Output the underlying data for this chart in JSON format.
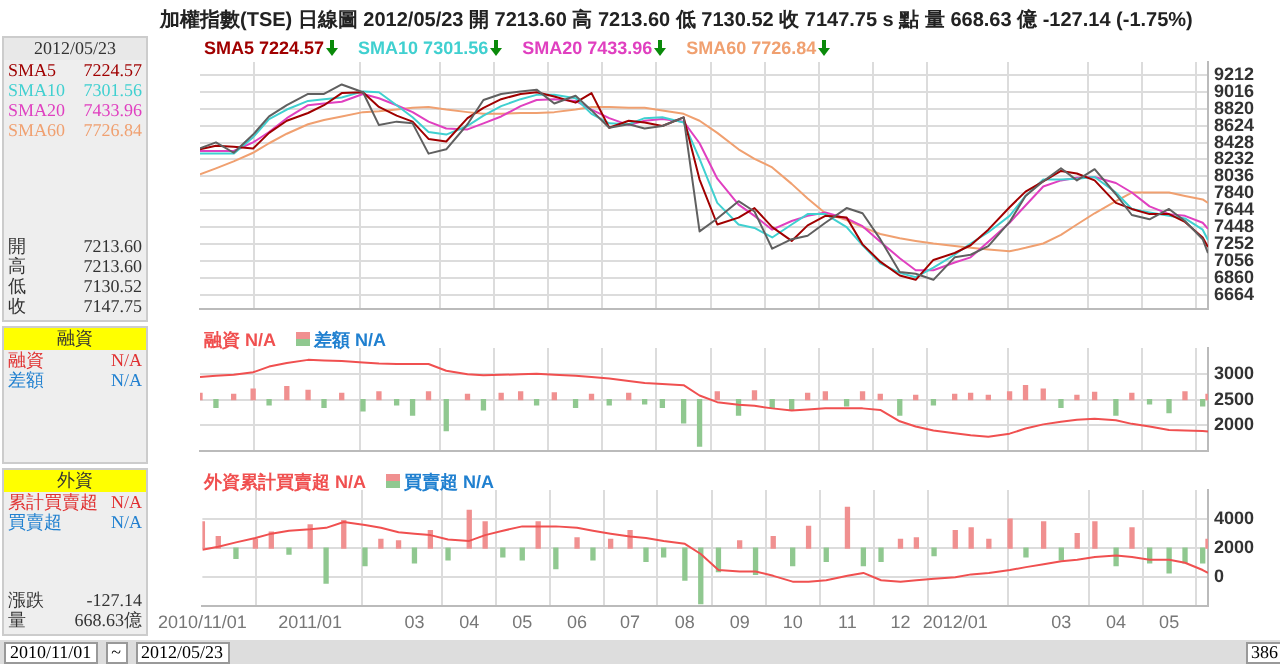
{
  "chart_data": [
    {
      "type": "line",
      "title": "加權指數(TSE) 日線圖 2012/05/23 開 7213.60 高 7213.60 低 7130.52 收 7147.75 s 點 量 668.63 億 -127.14 (-1.75%)",
      "annotations": [
        "2012/05/23",
        "SMA5 7224.57",
        "SMA10 7301.56",
        "SMA20 7433.96",
        "SMA60 7726.84",
        "開 7213.60",
        "高 7213.60",
        "低 7130.52",
        "收 7147.75"
      ],
      "x": [
        "2010-11-01",
        "2010-11-10",
        "2010-11-20",
        "2010-12-01",
        "2010-12-10",
        "2010-12-20",
        "2011-01-01",
        "2011-01-10",
        "2011-01-20",
        "2011-02-01",
        "2011-02-10",
        "2011-02-20",
        "2011-03-01",
        "2011-03-10",
        "2011-03-20",
        "2011-04-01",
        "2011-04-10",
        "2011-04-20",
        "2011-05-01",
        "2011-05-10",
        "2011-05-20",
        "2011-06-01",
        "2011-06-10",
        "2011-06-20",
        "2011-07-01",
        "2011-07-10",
        "2011-07-20",
        "2011-08-01",
        "2011-08-10",
        "2011-08-20",
        "2011-09-01",
        "2011-09-10",
        "2011-09-20",
        "2011-10-01",
        "2011-10-10",
        "2011-10-20",
        "2011-11-01",
        "2011-11-10",
        "2011-11-20",
        "2011-12-01",
        "2011-12-10",
        "2011-12-20",
        "2012-01-01",
        "2012-01-10",
        "2012-01-20",
        "2012-02-01",
        "2012-02-10",
        "2012-02-20",
        "2012-03-01",
        "2012-03-10",
        "2012-03-20",
        "2012-04-01",
        "2012-04-10",
        "2012-04-20",
        "2012-05-01",
        "2012-05-10",
        "2012-05-20",
        "2012-05-23"
      ],
      "xlim": [
        "2010-11-01",
        "2012-05-23"
      ],
      "xticks": [
        {
          "value": "2010-11-01",
          "label": null
        },
        {
          "value": "2011-01-01",
          "label": null
        },
        {
          "value": "2011-03-01",
          "label": null
        },
        {
          "value": "2011-04-01",
          "label": null
        },
        {
          "value": "2011-05-01",
          "label": null
        },
        {
          "value": "2011-06-01",
          "label": null
        },
        {
          "value": "2011-07-01",
          "label": null
        },
        {
          "value": "2011-08-01",
          "label": null
        },
        {
          "value": "2011-09-01",
          "label": null
        },
        {
          "value": "2011-10-01",
          "label": null
        },
        {
          "value": "2011-11-01",
          "label": null
        },
        {
          "value": "2011-12-01",
          "label": null
        },
        {
          "value": "2012-01-01",
          "label": null
        },
        {
          "value": "2012-03-01",
          "label": null
        },
        {
          "value": "2012-04-01",
          "label": null
        },
        {
          "value": "2012-05-01",
          "label": null
        }
      ],
      "ylim": [
        6500,
        9360
      ],
      "yticks": [
        6664,
        6860,
        7056,
        7252,
        7448,
        7644,
        7840,
        8036,
        8232,
        8428,
        8624,
        8820,
        9016,
        9212
      ],
      "grid": true,
      "legend": "top left",
      "tick_labels": "y",
      "series": [
        {
          "color": "#606060",
          "values": [
            8360,
            8430,
            8310,
            8520,
            8730,
            8860,
            8990,
            8990,
            9100,
            9010,
            8630,
            8670,
            8650,
            8300,
            8350,
            8640,
            8920,
            8990,
            9020,
            9040,
            8880,
            8970,
            8800,
            8600,
            8640,
            8590,
            8620,
            8720,
            7400,
            7550,
            7750,
            7630,
            7200,
            7310,
            7350,
            7500,
            7670,
            7610,
            7310,
            6930,
            6910,
            6840,
            7100,
            7130,
            7230,
            7510,
            7810,
            7980,
            8130,
            7990,
            8120,
            7830,
            7590,
            7540,
            7660,
            7520,
            7310,
            7150
          ]
        },
        {
          "name": "SMA5 7224.57",
          "color": "#a00000",
          "values": [
            8350,
            8390,
            8380,
            8360,
            8540,
            8680,
            8770,
            8860,
            9000,
            9010,
            8840,
            8740,
            8670,
            8470,
            8440,
            8710,
            8830,
            8930,
            8990,
            9010,
            8960,
            8890,
            9000,
            8600,
            8680,
            8660,
            8620,
            8720,
            8000,
            7480,
            7560,
            7670,
            7450,
            7290,
            7470,
            7580,
            7560,
            7250,
            7050,
            6890,
            6840,
            7070,
            7150,
            7240,
            7420,
            7680,
            7860,
            7980,
            8100,
            8070,
            7990,
            7730,
            7660,
            7600,
            7600,
            7510,
            7330,
            7220
          ]
        },
        {
          "name": "SMA10 7301.56",
          "color": "#40d0d0",
          "values": [
            8300,
            8300,
            8300,
            8490,
            8700,
            8810,
            8910,
            8930,
            8950,
            9020,
            9010,
            8860,
            8720,
            8550,
            8520,
            8620,
            8740,
            8850,
            8930,
            8980,
            8980,
            8940,
            8760,
            8650,
            8640,
            8710,
            8720,
            8660,
            8240,
            7730,
            7480,
            7440,
            7330,
            7480,
            7600,
            7600,
            7450,
            7240,
            7030,
            6920,
            6870,
            6980,
            7130,
            7260,
            7390,
            7580,
            7810,
            8000,
            8000,
            8010,
            8030,
            7850,
            7660,
            7620,
            7580,
            7550,
            7420,
            7300
          ]
        },
        {
          "name": "SMA20 7433.96",
          "color": "#e040c0",
          "values": [
            8330,
            8330,
            8330,
            8430,
            8550,
            8710,
            8860,
            8880,
            8900,
            8990,
            8940,
            8860,
            8780,
            8670,
            8590,
            8580,
            8650,
            8730,
            8850,
            8920,
            8930,
            8910,
            8810,
            8710,
            8630,
            8680,
            8700,
            8670,
            8420,
            8010,
            7710,
            7580,
            7420,
            7520,
            7580,
            7620,
            7550,
            7460,
            7280,
            7090,
            6950,
            6950,
            7040,
            7100,
            7280,
            7500,
            7700,
            7920,
            7990,
            8020,
            8030,
            7960,
            7850,
            7690,
            7600,
            7580,
            7500,
            7430
          ]
        },
        {
          "name": "SMA60 7726.84",
          "color": "#f0a070",
          "values": [
            8060,
            8130,
            8210,
            8310,
            8420,
            8530,
            8640,
            8690,
            8730,
            8780,
            8790,
            8810,
            8830,
            8840,
            8810,
            8780,
            8760,
            8760,
            8770,
            8770,
            8780,
            8810,
            8840,
            8840,
            8830,
            8830,
            8800,
            8760,
            8680,
            8540,
            8350,
            8240,
            8140,
            7950,
            7780,
            7610,
            7530,
            7450,
            7370,
            7320,
            7290,
            7260,
            7230,
            7210,
            7190,
            7170,
            7210,
            7260,
            7360,
            7480,
            7610,
            7750,
            7850,
            7850,
            7850,
            7810,
            7770,
            7730
          ]
        }
      ]
    },
    {
      "type": "bar",
      "annotations": [
        "融資",
        "融資 N/A",
        "差額 N/A"
      ],
      "x": [
        "2010-11-01",
        "2010-11-10",
        "2010-11-20",
        "2010-12-01",
        "2010-12-10",
        "2010-12-20",
        "2011-01-01",
        "2011-01-10",
        "2011-01-20",
        "2011-02-01",
        "2011-02-10",
        "2011-02-20",
        "2011-03-01",
        "2011-03-10",
        "2011-03-20",
        "2011-04-01",
        "2011-04-10",
        "2011-04-20",
        "2011-05-01",
        "2011-05-10",
        "2011-05-20",
        "2011-06-01",
        "2011-06-10",
        "2011-06-20",
        "2011-07-01",
        "2011-07-10",
        "2011-07-20",
        "2011-08-01",
        "2011-08-10",
        "2011-08-20",
        "2011-09-01",
        "2011-09-10",
        "2011-09-20",
        "2011-10-01",
        "2011-10-10",
        "2011-10-20",
        "2011-11-01",
        "2011-11-10",
        "2011-11-20",
        "2011-12-01",
        "2011-12-10",
        "2011-12-20",
        "2012-01-01",
        "2012-01-10",
        "2012-01-20",
        "2012-02-01",
        "2012-02-10",
        "2012-02-20",
        "2012-03-01",
        "2012-03-10",
        "2012-03-20",
        "2012-04-01",
        "2012-04-10",
        "2012-04-20",
        "2012-05-01",
        "2012-05-10",
        "2012-05-20",
        "2012-05-23"
      ],
      "xlim": [
        "2010-11-01",
        "2012-05-23"
      ],
      "xticks": [
        {
          "value": "2010-11-01",
          "label": null
        },
        {
          "value": "2011-01-01",
          "label": null
        },
        {
          "value": "2011-03-01",
          "label": null
        },
        {
          "value": "2011-04-01",
          "label": null
        },
        {
          "value": "2011-05-01",
          "label": null
        },
        {
          "value": "2011-06-01",
          "label": null
        },
        {
          "value": "2011-07-01",
          "label": null
        },
        {
          "value": "2011-08-01",
          "label": null
        },
        {
          "value": "2011-09-01",
          "label": null
        },
        {
          "value": "2011-10-01",
          "label": null
        },
        {
          "value": "2011-11-01",
          "label": null
        },
        {
          "value": "2011-12-01",
          "label": null
        },
        {
          "value": "2012-01-01",
          "label": null
        },
        {
          "value": "2012-03-01",
          "label": null
        },
        {
          "value": "2012-04-01",
          "label": null
        },
        {
          "value": "2012-05-01",
          "label": null
        }
      ],
      "ylim": [
        1500,
        3500
      ],
      "yticks": [
        2000,
        2500,
        3000
      ],
      "grid": true,
      "legend": "top left",
      "tick_labels": "y",
      "series": [
        {
          "name": "融資 N/A",
          "type": "line",
          "color": "#f05050",
          "values": [
            2940,
            2960,
            2980,
            3030,
            3140,
            3210,
            3270,
            3260,
            3250,
            3220,
            3200,
            3190,
            3190,
            3190,
            3060,
            2990,
            2970,
            2980,
            2990,
            3000,
            2980,
            2960,
            2940,
            2910,
            2860,
            2820,
            2800,
            2780,
            2580,
            2450,
            2400,
            2380,
            2330,
            2290,
            2310,
            2330,
            2330,
            2330,
            2300,
            2080,
            1980,
            1900,
            1850,
            1810,
            1780,
            1840,
            1940,
            2020,
            2070,
            2110,
            2130,
            2100,
            2030,
            1980,
            1910,
            1900,
            1890,
            1880
          ]
        },
        {
          "name": "差額 N/A",
          "color": "#2080d0",
          "base": [
            2500,
            2500,
            2500,
            2500,
            2500,
            2500,
            2500,
            2500,
            2500,
            2500,
            2500,
            2500,
            2500,
            2500,
            2500,
            2500,
            2500,
            2500,
            2500,
            2500,
            2500,
            2500,
            2500,
            2500,
            2500,
            2500,
            2500,
            2500,
            2500,
            2500,
            2500,
            2500,
            2500,
            2500,
            2500,
            2500,
            2500,
            2500,
            2500,
            2500,
            2500,
            2500,
            2500,
            2500,
            2500,
            2500,
            2500,
            2500,
            2500,
            2500,
            2500,
            2500,
            2500,
            2500,
            2500,
            2500,
            2500,
            2500
          ],
          "values": [
            120,
            -150,
            100,
            200,
            -100,
            250,
            180,
            -150,
            120,
            -220,
            150,
            -100,
            -300,
            150,
            -600,
            100,
            -200,
            120,
            150,
            -100,
            130,
            -150,
            100,
            -100,
            120,
            -80,
            -150,
            -450,
            -900,
            150,
            -300,
            170,
            -150,
            -200,
            120,
            150,
            -120,
            150,
            100,
            -300,
            80,
            -100,
            100,
            120,
            80,
            150,
            270,
            200,
            -150,
            80,
            140,
            -300,
            120,
            -80,
            -250,
            150,
            -120,
            100
          ],
          "colors": [
            "#f09090",
            "#90c890",
            "#f09090",
            "#f09090",
            "#90c890",
            "#f09090",
            "#f09090",
            "#90c890",
            "#f09090",
            "#90c890",
            "#f09090",
            "#90c890",
            "#90c890",
            "#f09090",
            "#90c890",
            "#f09090",
            "#90c890",
            "#f09090",
            "#f09090",
            "#90c890",
            "#f09090",
            "#90c890",
            "#f09090",
            "#90c890",
            "#f09090",
            "#90c890",
            "#90c890",
            "#90c890",
            "#90c890",
            "#f09090",
            "#90c890",
            "#f09090",
            "#90c890",
            "#90c890",
            "#f09090",
            "#f09090",
            "#90c890",
            "#f09090",
            "#f09090",
            "#90c890",
            "#f09090",
            "#90c890",
            "#f09090",
            "#f09090",
            "#f09090",
            "#f09090",
            "#f09090",
            "#f09090",
            "#90c890",
            "#f09090",
            "#f09090",
            "#90c890",
            "#f09090",
            "#90c890",
            "#90c890",
            "#f09090",
            "#90c890",
            "#f09090"
          ]
        }
      ]
    },
    {
      "type": "bar",
      "annotations": [
        "外資",
        "累計買賣超 N/A",
        "買賣超 N/A",
        "漲跌 -127.14",
        "量 668.63億",
        "2010/11/01",
        "~",
        "2012/05/23",
        "386"
      ],
      "x": [
        "2010-11-01",
        "2010-11-10",
        "2010-11-20",
        "2010-12-01",
        "2010-12-10",
        "2010-12-20",
        "2011-01-01",
        "2011-01-10",
        "2011-01-20",
        "2011-02-01",
        "2011-02-10",
        "2011-02-20",
        "2011-03-01",
        "2011-03-10",
        "2011-03-20",
        "2011-04-01",
        "2011-04-10",
        "2011-04-20",
        "2011-05-01",
        "2011-05-10",
        "2011-05-20",
        "2011-06-01",
        "2011-06-10",
        "2011-06-20",
        "2011-07-01",
        "2011-07-10",
        "2011-07-20",
        "2011-08-01",
        "2011-08-10",
        "2011-08-20",
        "2011-09-01",
        "2011-09-10",
        "2011-09-20",
        "2011-10-01",
        "2011-10-10",
        "2011-10-20",
        "2011-11-01",
        "2011-11-10",
        "2011-11-20",
        "2011-12-01",
        "2011-12-10",
        "2011-12-20",
        "2012-01-01",
        "2012-01-10",
        "2012-01-20",
        "2012-02-01",
        "2012-02-10",
        "2012-02-20",
        "2012-03-01",
        "2012-03-10",
        "2012-03-20",
        "2012-04-01",
        "2012-04-10",
        "2012-04-20",
        "2012-05-01",
        "2012-05-10",
        "2012-05-20",
        "2012-05-23"
      ],
      "xlim": [
        "2010-11-01",
        "2012-05-23"
      ],
      "xticks": [
        {
          "value": "2010-11-01",
          "label": "2010/11/01"
        },
        {
          "value": "2011-01-01",
          "label": "2011/01"
        },
        {
          "value": "2011-03-01",
          "label": "03"
        },
        {
          "value": "2011-04-01",
          "label": "04"
        },
        {
          "value": "2011-05-01",
          "label": "05"
        },
        {
          "value": "2011-06-01",
          "label": "06"
        },
        {
          "value": "2011-07-01",
          "label": "07"
        },
        {
          "value": "2011-08-01",
          "label": "08"
        },
        {
          "value": "2011-09-01",
          "label": "09"
        },
        {
          "value": "2011-10-01",
          "label": "10"
        },
        {
          "value": "2011-11-01",
          "label": "11"
        },
        {
          "value": "2011-12-01",
          "label": "12"
        },
        {
          "value": "2012-01-01",
          "label": "2012/01"
        },
        {
          "value": "2012-03-01",
          "label": "03"
        },
        {
          "value": "2012-04-01",
          "label": "04"
        },
        {
          "value": "2012-05-01",
          "label": "05"
        }
      ],
      "ylim": [
        -2000,
        6000
      ],
      "yticks": [
        0,
        2000,
        4000
      ],
      "grid": true,
      "legend": "top left",
      "series": [
        {
          "name": "外資累計買賣超 N/A",
          "type": "line",
          "color": "#f05050",
          "values": [
            1900,
            2100,
            2400,
            2700,
            3000,
            3200,
            3300,
            3400,
            3800,
            3600,
            3400,
            3100,
            3000,
            2900,
            2600,
            2500,
            2900,
            3200,
            3500,
            3500,
            3500,
            3400,
            3200,
            3000,
            2800,
            2700,
            2500,
            2300,
            1600,
            500,
            400,
            400,
            100,
            -300,
            -300,
            -200,
            100,
            300,
            -200,
            -300,
            -200,
            -100,
            0,
            200,
            300,
            500,
            700,
            900,
            1100,
            1200,
            1400,
            1500,
            1400,
            1200,
            1200,
            1000,
            500,
            300
          ]
        },
        {
          "name": "買賣超 N/A",
          "color": "#2080d0",
          "base": [
            2000,
            2000,
            2000,
            2000,
            2000,
            2000,
            2000,
            2000,
            2000,
            2000,
            2000,
            2000,
            2000,
            2000,
            2000,
            2000,
            2000,
            2000,
            2000,
            2000,
            2000,
            2000,
            2000,
            2000,
            2000,
            2000,
            2000,
            2000,
            2000,
            2000,
            2000,
            2000,
            2000,
            2000,
            2000,
            2000,
            2000,
            2000,
            2000,
            2000,
            2000,
            2000,
            2000,
            2000,
            2000,
            2000,
            2000,
            2000,
            2000,
            2000,
            2000,
            2000,
            2000,
            2000,
            2000,
            2000,
            2000,
            2000
          ],
          "values": [
            1800,
            800,
            -700,
            600,
            1100,
            -400,
            1600,
            -2400,
            1900,
            -1200,
            600,
            500,
            -1000,
            1200,
            -800,
            2600,
            1800,
            -600,
            -800,
            1800,
            -1400,
            700,
            -800,
            600,
            1200,
            -900,
            -600,
            -2200,
            -3800,
            -1600,
            500,
            -1800,
            800,
            -1200,
            1500,
            -900,
            2800,
            -1200,
            -900,
            600,
            700,
            -500,
            1200,
            1400,
            600,
            2000,
            -600,
            1800,
            -800,
            1000,
            1800,
            -1200,
            1400,
            -1000,
            -1700,
            -1000,
            -1000,
            600
          ],
          "colors": [
            "#f09090",
            "#f09090",
            "#90c890",
            "#f09090",
            "#f09090",
            "#90c890",
            "#f09090",
            "#90c890",
            "#f09090",
            "#90c890",
            "#f09090",
            "#f09090",
            "#90c890",
            "#f09090",
            "#90c890",
            "#f09090",
            "#f09090",
            "#90c890",
            "#90c890",
            "#f09090",
            "#90c890",
            "#f09090",
            "#90c890",
            "#f09090",
            "#f09090",
            "#90c890",
            "#90c890",
            "#90c890",
            "#90c890",
            "#90c890",
            "#f09090",
            "#90c890",
            "#f09090",
            "#90c890",
            "#f09090",
            "#90c890",
            "#f09090",
            "#90c890",
            "#90c890",
            "#f09090",
            "#f09090",
            "#90c890",
            "#f09090",
            "#f09090",
            "#f09090",
            "#f09090",
            "#90c890",
            "#f09090",
            "#90c890",
            "#f09090",
            "#f09090",
            "#90c890",
            "#f09090",
            "#90c890",
            "#90c890",
            "#90c890",
            "#90c890",
            "#f09090"
          ]
        }
      ]
    }
  ]
}
